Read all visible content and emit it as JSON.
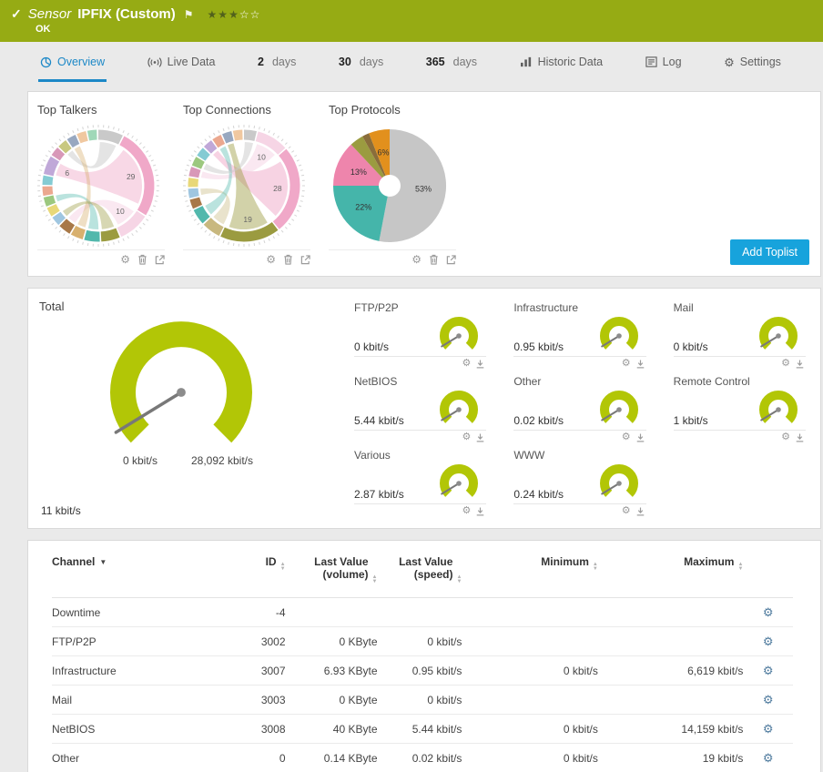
{
  "colors": {
    "header_bg": "#96ab14",
    "accent_blue": "#1c88c7",
    "button_blue": "#17a3dc",
    "gauge_green": "#b2c606"
  },
  "header": {
    "kind_label": "Sensor",
    "title": "IPFIX (Custom)",
    "status": "OK",
    "priority_filled": 3,
    "priority_total": 5
  },
  "tabs": [
    {
      "label": "Overview",
      "icon": "overview",
      "active": true
    },
    {
      "label": "Live Data",
      "icon": "live-data"
    },
    {
      "num": "2",
      "unit": "days"
    },
    {
      "num": "30",
      "unit": "days"
    },
    {
      "num": "365",
      "unit": "days"
    },
    {
      "label": "Historic Data",
      "icon": "historic-data"
    },
    {
      "label": "Log",
      "icon": "log"
    },
    {
      "label": "Settings",
      "icon": "settings"
    }
  ],
  "toplists": {
    "add_button": "Add Toplist"
  },
  "chart_data": [
    {
      "type": "chord",
      "title": "Top Talkers",
      "segments": [
        {
          "value": 8,
          "color": "#c9c9c9"
        },
        {
          "value": 29,
          "color": "#f0a8c8",
          "label": "29"
        },
        {
          "value": 10,
          "color": "#f6d5e5",
          "label": "10"
        },
        {
          "value": 6,
          "color": "#9b9b40"
        },
        {
          "value": 5,
          "color": "#52b8ac"
        },
        {
          "value": 4,
          "color": "#d8b06e"
        },
        {
          "value": 4,
          "color": "#a87848"
        },
        {
          "value": 3,
          "color": "#9fc6e0"
        },
        {
          "value": 3,
          "color": "#e8d878"
        },
        {
          "value": 3,
          "color": "#9cc87f"
        },
        {
          "value": 3,
          "color": "#eba88f"
        },
        {
          "value": 3,
          "color": "#84cbd3"
        },
        {
          "value": 6,
          "color": "#c0a8d8",
          "label": "6"
        },
        {
          "value": 3,
          "color": "#d898b8"
        },
        {
          "value": 3,
          "color": "#c8c87f"
        },
        {
          "value": 3,
          "color": "#98a8c0"
        },
        {
          "value": 3,
          "color": "#f0c8a0"
        },
        {
          "value": 3,
          "color": "#a0d8b8"
        }
      ],
      "ribbons": [
        {
          "from": 0,
          "to": 14,
          "color": "#c9c9c9",
          "opacity": 0.5
        },
        {
          "from": 1,
          "to": 12,
          "color": "#f0a8c8",
          "opacity": 0.45
        },
        {
          "from": 2,
          "to": 6,
          "color": "#f6d5e5",
          "opacity": 0.55
        },
        {
          "from": 4,
          "to": 9,
          "color": "#52b8ac",
          "opacity": 0.4
        },
        {
          "from": 5,
          "to": 15,
          "color": "#d8b06e",
          "opacity": 0.4
        },
        {
          "from": 3,
          "to": 7,
          "color": "#9b9b40",
          "opacity": 0.4
        }
      ]
    },
    {
      "type": "chord",
      "title": "Top Connections",
      "segments": [
        {
          "value": 4,
          "color": "#c9c9c9"
        },
        {
          "value": 10,
          "color": "#f6d5e5",
          "label": "10"
        },
        {
          "value": 28,
          "color": "#f0a8c8",
          "label": "28"
        },
        {
          "value": 19,
          "color": "#9b9b40",
          "label": "19"
        },
        {
          "value": 6,
          "color": "#c8b87f"
        },
        {
          "value": 5,
          "color": "#52b8ac"
        },
        {
          "value": 3,
          "color": "#a87848"
        },
        {
          "value": 3,
          "color": "#9fc6e0"
        },
        {
          "value": 3,
          "color": "#e8d878"
        },
        {
          "value": 3,
          "color": "#d898b8"
        },
        {
          "value": 3,
          "color": "#9cc87f"
        },
        {
          "value": 3,
          "color": "#84cbd3"
        },
        {
          "value": 3,
          "color": "#c0a8d8"
        },
        {
          "value": 3,
          "color": "#eba88f"
        },
        {
          "value": 3,
          "color": "#98a8c0"
        },
        {
          "value": 3,
          "color": "#f0c8a0"
        }
      ],
      "ribbons": [
        {
          "from": 2,
          "to": 12,
          "color": "#f0a8c8",
          "opacity": 0.5
        },
        {
          "from": 1,
          "to": 9,
          "color": "#f6d5e5",
          "opacity": 0.55
        },
        {
          "from": 3,
          "to": 14,
          "color": "#9b9b40",
          "opacity": 0.45
        },
        {
          "from": 4,
          "to": 7,
          "color": "#c8b87f",
          "opacity": 0.4
        },
        {
          "from": 5,
          "to": 13,
          "color": "#52b8ac",
          "opacity": 0.4
        },
        {
          "from": 0,
          "to": 10,
          "color": "#c9c9c9",
          "opacity": 0.5
        }
      ]
    },
    {
      "type": "donut",
      "title": "Top Protocols",
      "slices": [
        {
          "value": 53,
          "color": "#c6c6c6",
          "label": "53%"
        },
        {
          "value": 22,
          "color": "#45b5aa",
          "label": "22%"
        },
        {
          "value": 13,
          "color": "#ee85ac",
          "label": "13%"
        },
        {
          "value": 4,
          "color": "#9b9b40"
        },
        {
          "value": 2,
          "color": "#8a6d3b"
        },
        {
          "value": 6,
          "color": "#e2901d",
          "label": "6%"
        }
      ]
    }
  ],
  "gauges": {
    "section_title": "Total",
    "total": {
      "value_label": "11 kbit/s",
      "min_label": "0 kbit/s",
      "max_label": "28,092 kbit/s",
      "value": 11,
      "min": 0,
      "max": 28092
    },
    "items": [
      {
        "name": "FTP/P2P",
        "value_label": "0 kbit/s",
        "value": 0
      },
      {
        "name": "Infrastructure",
        "value_label": "0.95 kbit/s",
        "value": 0.95
      },
      {
        "name": "Mail",
        "value_label": "0 kbit/s",
        "value": 0
      },
      {
        "name": "NetBIOS",
        "value_label": "5.44 kbit/s",
        "value": 5.44
      },
      {
        "name": "Other",
        "value_label": "0.02 kbit/s",
        "value": 0.02
      },
      {
        "name": "Remote Control",
        "value_label": "1 kbit/s",
        "value": 1
      },
      {
        "name": "Various",
        "value_label": "2.87 kbit/s",
        "value": 2.87
      },
      {
        "name": "WWW",
        "value_label": "0.24 kbit/s",
        "value": 0.24
      }
    ]
  },
  "table": {
    "headers": {
      "channel": "Channel",
      "id": "ID",
      "vol": "Last Value (volume)",
      "speed": "Last Value (speed)",
      "min": "Minimum",
      "max": "Maximum"
    },
    "rows": [
      {
        "channel": "Downtime",
        "id": "-4",
        "vol": "",
        "speed": "",
        "min": "",
        "max": ""
      },
      {
        "channel": "FTP/P2P",
        "id": "3002",
        "vol": "0 KByte",
        "speed": "0 kbit/s",
        "min": "",
        "max": ""
      },
      {
        "channel": "Infrastructure",
        "id": "3007",
        "vol": "6.93 KByte",
        "speed": "0.95 kbit/s",
        "min": "0 kbit/s",
        "max": "6,619 kbit/s"
      },
      {
        "channel": "Mail",
        "id": "3003",
        "vol": "0 KByte",
        "speed": "0 kbit/s",
        "min": "",
        "max": ""
      },
      {
        "channel": "NetBIOS",
        "id": "3008",
        "vol": "40 KByte",
        "speed": "5.44 kbit/s",
        "min": "0 kbit/s",
        "max": "14,159 kbit/s"
      },
      {
        "channel": "Other",
        "id": "0",
        "vol": "0.14 KByte",
        "speed": "0.02 kbit/s",
        "min": "0 kbit/s",
        "max": "19 kbit/s"
      }
    ]
  }
}
